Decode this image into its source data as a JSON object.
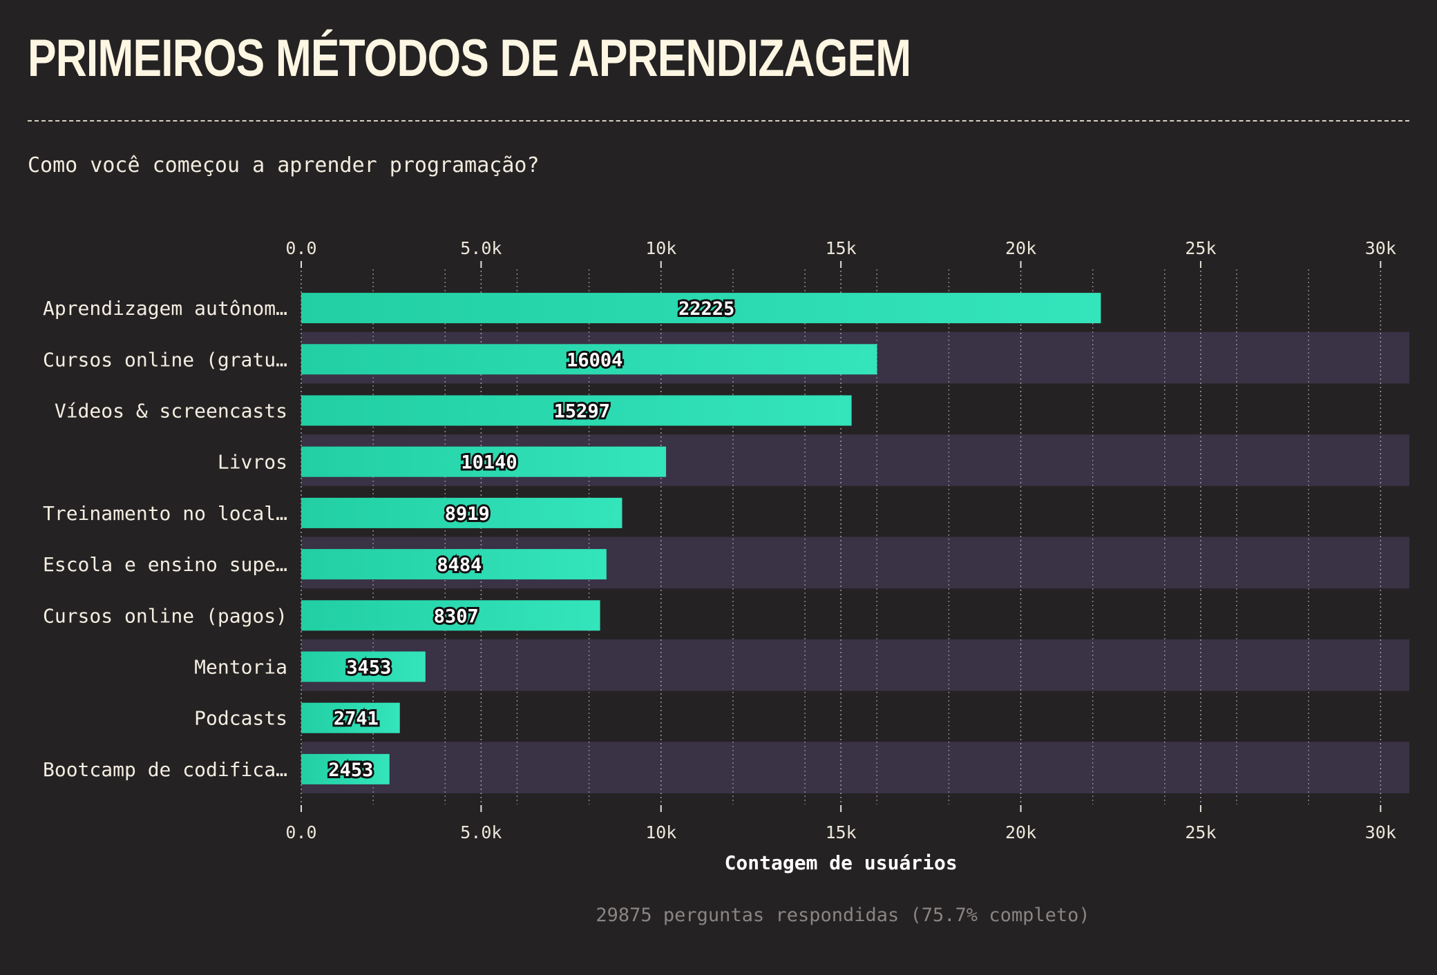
{
  "header": {
    "title": "PRIMEIROS MÉTODOS DE APRENDIZAGEM",
    "subtitle": "Como você começou a aprender programação?"
  },
  "footer": {
    "note": "29875 perguntas respondidas (75.7% completo)"
  },
  "colors": {
    "background": "#252223",
    "bar_start": "#22cfa4",
    "bar_end": "#34e4bb",
    "band": "#3a3245",
    "title": "#fdf6e3"
  },
  "chart_data": {
    "type": "bar",
    "orientation": "horizontal",
    "categories": [
      "Aprendizagem autônom…",
      "Cursos online (gratu…",
      "Vídeos & screencasts",
      "Livros",
      "Treinamento no local…",
      "Escola e ensino supe…",
      "Cursos online (pagos)",
      "Mentoria",
      "Podcasts",
      "Bootcamp de codifica…"
    ],
    "values": [
      22225,
      16004,
      15297,
      10140,
      8919,
      8484,
      8307,
      3453,
      2741,
      2453
    ],
    "xlabel": "Contagem de usuários",
    "xlim": [
      0,
      30800
    ],
    "major_ticks": [
      0,
      5000,
      10000,
      15000,
      20000,
      25000,
      30000
    ],
    "tick_labels": [
      "0.0",
      "5.0k",
      "10k",
      "15k",
      "20k",
      "25k",
      "30k"
    ],
    "minor_gridlines": [
      2000,
      4000,
      6000,
      8000,
      12000,
      14000,
      16000,
      18000,
      22000,
      24000,
      26000,
      28000
    ],
    "axis_position": "top and bottom",
    "grid": true,
    "legend": "none"
  }
}
